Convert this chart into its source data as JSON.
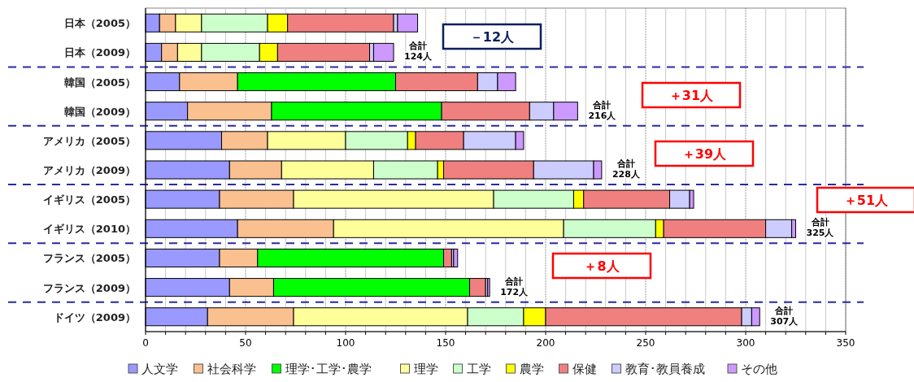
{
  "chart_data": {
    "type": "bar",
    "orientation": "horizontal",
    "stacked": true,
    "categories": [
      "日本（2005）",
      "日本（2009）",
      "韓国（2005）",
      "韓国（2009）",
      "アメリカ（2005）",
      "アメリカ（2009）",
      "イギリス（2005）",
      "イギリス（2010）",
      "フランス（2005）",
      "フランス（2009）",
      "ドイツ（2009）"
    ],
    "series": [
      {
        "name": "人文学",
        "color": "#9999ff",
        "values": [
          7,
          8,
          17,
          21,
          38,
          42,
          37,
          46,
          37,
          42,
          31
        ]
      },
      {
        "name": "社会科学",
        "color": "#fac090",
        "values": [
          8,
          8,
          29,
          42,
          23,
          26,
          37,
          48,
          19,
          22,
          43
        ]
      },
      {
        "name": "理学･工学･農学",
        "color": "#00ff00",
        "values": [
          null,
          null,
          79,
          85,
          null,
          null,
          null,
          null,
          93,
          98,
          null
        ]
      },
      {
        "name": "理学",
        "color": "#ffff99",
        "values": [
          13,
          12,
          null,
          null,
          39,
          46,
          100,
          115,
          null,
          null,
          87
        ]
      },
      {
        "name": "工学",
        "color": "#ccffcc",
        "values": [
          33,
          29,
          null,
          null,
          31,
          32,
          40,
          46,
          null,
          null,
          28
        ]
      },
      {
        "name": "農学",
        "color": "#ffff00",
        "values": [
          10,
          9,
          null,
          null,
          4,
          3,
          5,
          4,
          null,
          null,
          11
        ]
      },
      {
        "name": "保健",
        "color": "#f08080",
        "values": [
          53,
          46,
          41,
          44,
          24,
          45,
          43,
          51,
          4,
          8,
          98
        ]
      },
      {
        "name": "教育･教員養成",
        "color": "#ccccff",
        "values": [
          2,
          2,
          10,
          12,
          26,
          30,
          10,
          13,
          1,
          1,
          5
        ]
      },
      {
        "name": "その他",
        "color": "#cc99ff",
        "values": [
          10,
          10,
          9,
          12,
          4,
          4,
          2,
          2,
          2,
          1,
          4
        ]
      }
    ],
    "xlim": [
      0,
      350
    ],
    "xticks": [
      0,
      {
        "value": 10,
        "label": null
      },
      {
        "value": 20,
        "label": null
      },
      {
        "value": 30,
        "label": null
      },
      {
        "value": 40,
        "label": null
      },
      50,
      {
        "value": 60,
        "label": null
      },
      {
        "value": 70,
        "label": null
      },
      {
        "value": 80,
        "label": null
      },
      {
        "value": 90,
        "label": null
      },
      100,
      {
        "value": 110,
        "label": null
      },
      {
        "value": 120,
        "label": null
      },
      {
        "value": 130,
        "label": null
      },
      {
        "value": 140,
        "label": null
      },
      150,
      {
        "value": 160,
        "label": null
      },
      {
        "value": 170,
        "label": null
      },
      {
        "value": 180,
        "label": null
      },
      {
        "value": 190,
        "label": null
      },
      200,
      {
        "value": 210,
        "label": null
      },
      {
        "value": 220,
        "label": null
      },
      {
        "value": 230,
        "label": null
      },
      {
        "value": 240,
        "label": null
      },
      250,
      {
        "value": 260,
        "label": null
      },
      {
        "value": 270,
        "label": null
      },
      {
        "value": 280,
        "label": null
      },
      {
        "value": 290,
        "label": null
      },
      300,
      {
        "value": 310,
        "label": null
      },
      {
        "value": 320,
        "label": null
      },
      {
        "value": 330,
        "label": null
      },
      {
        "value": 340,
        "label": null
      },
      350
    ],
    "grid": "x",
    "legend": "bottom",
    "annotations": [
      {
        "text": "合計\n124人",
        "x": 124,
        "y": "日本（2009）"
      },
      {
        "text": "合計\n216人",
        "x": 216,
        "y": "韓国（2009）"
      },
      {
        "text": "合計\n228人",
        "x": 228,
        "y": "アメリカ（2009）"
      },
      {
        "text": "合計\n325人",
        "x": 325,
        "y": "イギリス（2010）"
      },
      {
        "text": "合計\n172人",
        "x": 172,
        "y": "フランス（2009）"
      },
      {
        "text": "合計\n307人",
        "x": 307,
        "y": "ドイツ（2009）"
      },
      "－12人",
      "＋31人",
      "＋39人",
      "＋51人",
      "＋8人"
    ]
  }
}
